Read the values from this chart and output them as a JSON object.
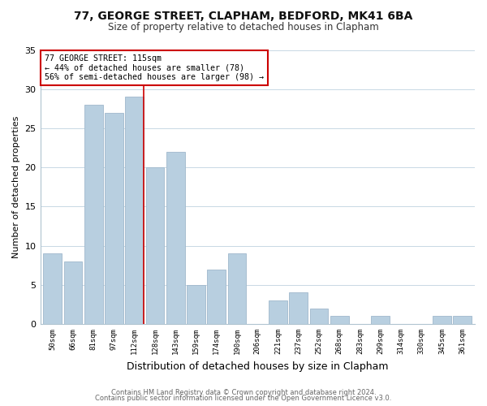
{
  "title1": "77, GEORGE STREET, CLAPHAM, BEDFORD, MK41 6BA",
  "title2": "Size of property relative to detached houses in Clapham",
  "xlabel": "Distribution of detached houses by size in Clapham",
  "ylabel": "Number of detached properties",
  "categories": [
    "50sqm",
    "66sqm",
    "81sqm",
    "97sqm",
    "112sqm",
    "128sqm",
    "143sqm",
    "159sqm",
    "174sqm",
    "190sqm",
    "206sqm",
    "221sqm",
    "237sqm",
    "252sqm",
    "268sqm",
    "283sqm",
    "299sqm",
    "314sqm",
    "330sqm",
    "345sqm",
    "361sqm"
  ],
  "values": [
    9,
    8,
    28,
    27,
    29,
    20,
    22,
    5,
    7,
    9,
    0,
    3,
    4,
    2,
    1,
    0,
    1,
    0,
    0,
    1,
    1
  ],
  "highlight_index": 4,
  "bar_color": "#b8cfe0",
  "bar_edge_color": "#a0b8cc",
  "highlight_line_color": "#cc0000",
  "annotation_line1": "77 GEORGE STREET: 115sqm",
  "annotation_line2": "← 44% of detached houses are smaller (78)",
  "annotation_line3": "56% of semi-detached houses are larger (98) →",
  "annotation_box_color": "#ffffff",
  "annotation_box_edge": "#cc0000",
  "ylim": [
    0,
    35
  ],
  "yticks": [
    0,
    5,
    10,
    15,
    20,
    25,
    30,
    35
  ],
  "footer1": "Contains HM Land Registry data © Crown copyright and database right 2024.",
  "footer2": "Contains public sector information licensed under the Open Government Licence v3.0.",
  "bg_color": "#ffffff",
  "plot_bg_color": "#ffffff",
  "grid_color": "#c8d8e4"
}
